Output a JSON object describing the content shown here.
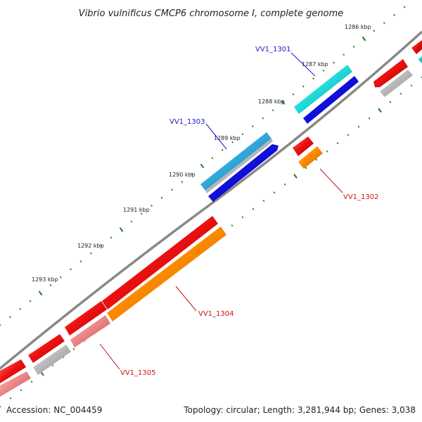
{
  "title": "Vibrio vulnificus CMCP6 chromosome I, complete genome",
  "footer": {
    "accession": "Accession: NC_004459",
    "summary": "Topology: circular; Length: 3,281,944 bp; Genes: 3,038"
  },
  "ticks": [
    "1286 kbp",
    "1287 kbp",
    "1288 kbp",
    "1289 kbp",
    "1290 kbp",
    "1291 kbp",
    "1292 kbp",
    "1293 kbp"
  ],
  "gene_labels": [
    {
      "id": "VV1_1301",
      "strand": "forward",
      "color": "#1a1acc"
    },
    {
      "id": "VV1_1302",
      "strand": "reverse",
      "color": "#cc1111"
    },
    {
      "id": "VV1_1303",
      "strand": "forward",
      "color": "#1a1acc"
    },
    {
      "id": "VV1_1304",
      "strand": "reverse",
      "color": "#cc1111"
    },
    {
      "id": "VV1_1305",
      "strand": "reverse",
      "color": "#cc1111"
    }
  ],
  "colors": {
    "backbone": "#888888",
    "tick_green": "#1a7a1a",
    "cds_red": "#ee1111",
    "cds_orange": "#ff8c00",
    "cds_blue": "#1111dd",
    "cds_cyan": "#33dddd",
    "cds_skyblue": "#33aadd",
    "cds_gray": "#bbbbbb",
    "cds_pink": "#ee8888"
  }
}
